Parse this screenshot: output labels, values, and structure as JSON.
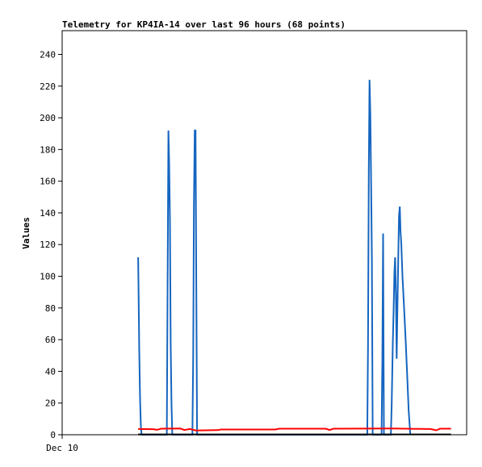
{
  "chart_data": {
    "type": "line",
    "title": "Telemetry for KP4IA-14 over last 96 hours (68 points)",
    "xlabel": "",
    "ylabel": "Values",
    "x_tick_labels": [
      "Dec 10"
    ],
    "xlim": [
      0,
      96
    ],
    "ylim": [
      0,
      255
    ],
    "y_ticks": [
      0,
      20,
      40,
      60,
      80,
      100,
      120,
      140,
      160,
      180,
      200,
      220,
      240
    ],
    "grid": false,
    "legend": "none",
    "series": [
      {
        "color": "#1565c0",
        "points": [
          [
            19.6,
            112
          ],
          [
            19.7,
            92
          ],
          [
            19.9,
            52
          ],
          [
            20.1,
            22
          ],
          [
            20.3,
            5
          ],
          [
            20.5,
            0
          ],
          [
            27.0,
            0
          ],
          [
            27.2,
            96
          ],
          [
            27.4,
            192
          ],
          [
            27.6,
            172
          ],
          [
            27.8,
            135
          ],
          [
            28.0,
            58
          ],
          [
            28.2,
            20
          ],
          [
            28.4,
            0
          ],
          [
            33.6,
            0
          ],
          [
            33.8,
            50
          ],
          [
            34.0,
            145
          ],
          [
            34.2,
            192
          ],
          [
            34.4,
            192
          ],
          [
            34.6,
            97
          ],
          [
            34.8,
            0
          ],
          [
            78.7,
            0
          ],
          [
            78.9,
            55
          ],
          [
            79.1,
            167
          ],
          [
            79.3,
            224
          ],
          [
            79.5,
            202
          ],
          [
            79.7,
            157
          ],
          [
            79.9,
            112
          ],
          [
            80.1,
            0
          ],
          [
            82.4,
            0
          ],
          [
            82.6,
            48
          ],
          [
            82.8,
            127
          ],
          [
            83.0,
            0
          ],
          [
            84.8,
            0
          ],
          [
            85.0,
            18
          ],
          [
            85.3,
            57
          ],
          [
            85.5,
            78
          ],
          [
            85.7,
            102
          ],
          [
            85.9,
            112
          ],
          [
            86.1,
            88
          ],
          [
            86.3,
            48
          ],
          [
            86.5,
            82
          ],
          [
            86.7,
            112
          ],
          [
            86.9,
            138
          ],
          [
            87.1,
            144
          ],
          [
            87.3,
            128
          ],
          [
            87.5,
            120
          ],
          [
            87.8,
            100
          ],
          [
            88.2,
            80
          ],
          [
            88.6,
            60
          ],
          [
            89.0,
            38
          ],
          [
            89.4,
            15
          ],
          [
            89.8,
            0
          ]
        ]
      },
      {
        "color": "#ff0000",
        "points": [
          [
            19.6,
            3.6
          ],
          [
            23.5,
            3.5
          ],
          [
            24.5,
            3.1
          ],
          [
            25.5,
            3.8
          ],
          [
            30.5,
            3.9
          ],
          [
            31.5,
            3.0
          ],
          [
            33.0,
            3.6
          ],
          [
            34.5,
            2.7
          ],
          [
            40.0,
            2.9
          ],
          [
            41.0,
            3.3
          ],
          [
            55.0,
            3.3
          ],
          [
            56.0,
            3.8
          ],
          [
            68.0,
            3.8
          ],
          [
            69.0,
            3.0
          ],
          [
            70.0,
            3.8
          ],
          [
            85.0,
            3.9
          ],
          [
            95.0,
            3.6
          ],
          [
            96.5,
            2.8
          ],
          [
            97.5,
            3.8
          ],
          [
            100.3,
            3.8
          ]
        ]
      },
      {
        "color": "#000000",
        "points": [
          [
            19.6,
            0.2
          ],
          [
            100.3,
            0.2
          ]
        ]
      }
    ]
  }
}
